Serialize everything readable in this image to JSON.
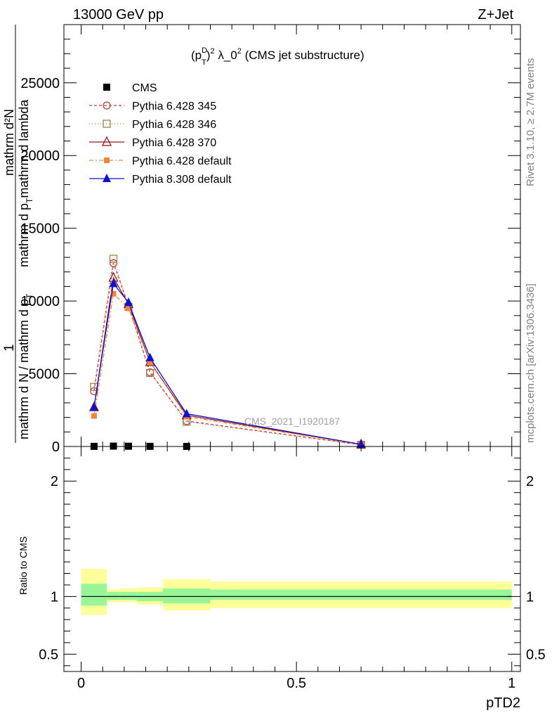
{
  "header": {
    "left": "13000 GeV pp",
    "right": "Z+Jet"
  },
  "side_labels": {
    "rivet": "Rivet 3.1.10, ≥ 2.7M events",
    "mcplots": "mcplots.cern.ch [arXiv:1306.3436]"
  },
  "colors": {
    "cms": "#000000",
    "p345": "#b8403d",
    "p346": "#a0804a",
    "p370": "#8b1a1a",
    "p6def": "#f5823c",
    "p8def": "#1010d0",
    "band_inner": "#98f598",
    "band_outer": "#ffff99"
  },
  "chart_data": [
    {
      "type": "line",
      "title": "(p_T^D)^2 λ_0^2 (CMS jet substructure)",
      "title_parts": {
        "open": "(p",
        "sup": "D",
        "sub": "T",
        "close": ")",
        "sup2": "2",
        "lambda": " λ_0",
        "sup3": "2",
        "tail": " (CMS jet substructure)"
      },
      "ylabel": "mathrm d^{2}N / mathrm d p_T mathrm d lambda",
      "ylabel_lines": {
        "top": "mathrm d²N",
        "bottom": "mathrm d p",
        "bottom_sub": "T",
        "bottom_tail": "mathrm d lambda",
        "frac_top": "1",
        "frac_bottom": "mathrm d N / mathrm d p",
        "frac_bottom_sub": "T"
      },
      "watermark": "CMS_2021_I1920187",
      "xlim": [
        -0.04,
        1.02
      ],
      "ylim": [
        0,
        29000
      ],
      "y_ticks": [
        0,
        5000,
        10000,
        15000,
        20000,
        25000
      ],
      "y_tick_labels": [
        "0",
        "5000",
        "10000",
        "15000",
        "20000",
        "25000"
      ],
      "legend_position": "top-left",
      "series": [
        {
          "name": "CMS",
          "key": "cms",
          "marker": "square-filled",
          "dash": "",
          "x": [
            0.03,
            0.075,
            0.11,
            0.16,
            0.245
          ],
          "y": [
            8,
            25,
            18,
            10,
            5
          ]
        },
        {
          "name": "Pythia 6.428 345",
          "key": "p345",
          "marker": "circle-open",
          "dash": "4,3",
          "x": [
            0.03,
            0.075,
            0.11,
            0.16,
            0.245,
            0.65
          ],
          "y": [
            3800,
            12600,
            9700,
            5100,
            1750,
            120
          ]
        },
        {
          "name": "Pythia 6.428 346",
          "key": "p346",
          "marker": "square-open",
          "dash": "1,3",
          "x": [
            0.03,
            0.075,
            0.11,
            0.16,
            0.245,
            0.65
          ],
          "y": [
            4100,
            12900,
            9600,
            5050,
            1700,
            115
          ]
        },
        {
          "name": "Pythia 6.428 370",
          "key": "p370",
          "marker": "triangle-open",
          "dash": "",
          "x": [
            0.03,
            0.075,
            0.11,
            0.16,
            0.245,
            0.65
          ],
          "y": [
            2700,
            11600,
            9800,
            5800,
            2150,
            140
          ]
        },
        {
          "name": "Pythia 6.428 default",
          "key": "p6def",
          "marker": "square-filled-small",
          "dash": "6,3,2,3",
          "x": [
            0.03,
            0.075,
            0.11,
            0.16,
            0.245,
            0.65
          ],
          "y": [
            2100,
            10500,
            9500,
            5800,
            2050,
            130
          ]
        },
        {
          "name": "Pythia 8.308 default",
          "key": "p8def",
          "marker": "triangle-filled",
          "dash": "",
          "x": [
            0.03,
            0.075,
            0.11,
            0.16,
            0.245,
            0.65
          ],
          "y": [
            2700,
            11200,
            9900,
            6100,
            2250,
            150
          ]
        }
      ]
    },
    {
      "type": "area",
      "ylabel": "Ratio to CMS",
      "xlabel": "pTD2",
      "xlim": [
        -0.04,
        1.02
      ],
      "ylim": [
        0.35,
        2.3
      ],
      "x_ticks": [
        0,
        0.5,
        1
      ],
      "x_tick_labels": [
        "0",
        "0.5",
        "1"
      ],
      "y_ticks": [
        0.5,
        1,
        2
      ],
      "y_tick_labels": [
        "0.5",
        "1",
        "2"
      ],
      "bands": [
        {
          "x0": 0.0,
          "x1": 0.06,
          "inner": [
            0.92,
            1.11
          ],
          "outer": [
            0.84,
            1.24
          ]
        },
        {
          "x0": 0.06,
          "x1": 0.09,
          "inner": [
            0.97,
            1.04
          ],
          "outer": [
            0.95,
            1.06
          ]
        },
        {
          "x0": 0.09,
          "x1": 0.13,
          "inner": [
            0.97,
            1.04
          ],
          "outer": [
            0.95,
            1.07
          ]
        },
        {
          "x0": 0.13,
          "x1": 0.19,
          "inner": [
            0.96,
            1.04
          ],
          "outer": [
            0.93,
            1.08
          ]
        },
        {
          "x0": 0.19,
          "x1": 0.3,
          "inner": [
            0.94,
            1.07
          ],
          "outer": [
            0.88,
            1.15
          ]
        },
        {
          "x0": 0.3,
          "x1": 1.0,
          "inner": [
            0.97,
            1.06
          ],
          "outer": [
            0.9,
            1.13
          ]
        }
      ],
      "reference_line": 1
    }
  ]
}
